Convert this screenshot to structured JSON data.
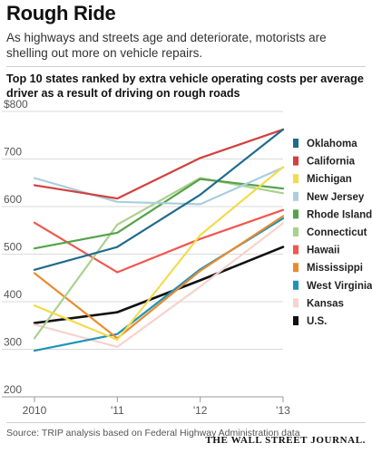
{
  "header": {
    "title": "Rough Ride",
    "subtitle": "As highways and streets age and deteriorate, motorists are shelling out more on vehicle repairs."
  },
  "footer": {
    "source": "Source: TRIP analysis based on Federal Highway Administration data",
    "brand": "THE WALL STREET JOURNAL."
  },
  "chart_data": {
    "type": "line",
    "title": "Top 10 states ranked by extra vehicle operating costs per average driver as a result of driving on rough roads",
    "xlabel": "",
    "ylabel": "",
    "x": [
      "2010",
      "'11",
      "'12",
      "'13"
    ],
    "ylim": [
      200,
      800
    ],
    "yticks": [
      200,
      300,
      400,
      500,
      600,
      700,
      800
    ],
    "ytick_labels": [
      "200",
      "300",
      "400",
      "500",
      "600",
      "700",
      "$800"
    ],
    "grid": true,
    "legend_position": "right",
    "series": [
      {
        "name": "Oklahoma",
        "color": "#1f6b8c",
        "values": [
          467,
          515,
          625,
          762
        ]
      },
      {
        "name": "California",
        "color": "#d2403f",
        "values": [
          645,
          617,
          702,
          762
        ]
      },
      {
        "name": "Michigan",
        "color": "#f2dc4c",
        "values": [
          392,
          320,
          540,
          683
        ]
      },
      {
        "name": "New Jersey",
        "color": "#a9cfdc",
        "values": [
          660,
          610,
          605,
          682
        ]
      },
      {
        "name": "Rhode Island",
        "color": "#56a24b",
        "values": [
          512,
          545,
          658,
          638
        ]
      },
      {
        "name": "Connecticut",
        "color": "#a9d18e",
        "values": [
          323,
          562,
          660,
          628
        ]
      },
      {
        "name": "Hawaii",
        "color": "#f2564f",
        "values": [
          566,
          462,
          532,
          593
        ]
      },
      {
        "name": "Mississippi",
        "color": "#e98b2f",
        "values": [
          460,
          323,
          465,
          580
        ]
      },
      {
        "name": "West Virginia",
        "color": "#1e93b8",
        "values": [
          297,
          332,
          468,
          575
        ]
      },
      {
        "name": "Kansas",
        "color": "#f6d3cc",
        "values": [
          352,
          305,
          432,
          565
        ]
      },
      {
        "name": "U.S.",
        "color": "#111111",
        "values": [
          355,
          378,
          445,
          515
        ]
      }
    ]
  }
}
